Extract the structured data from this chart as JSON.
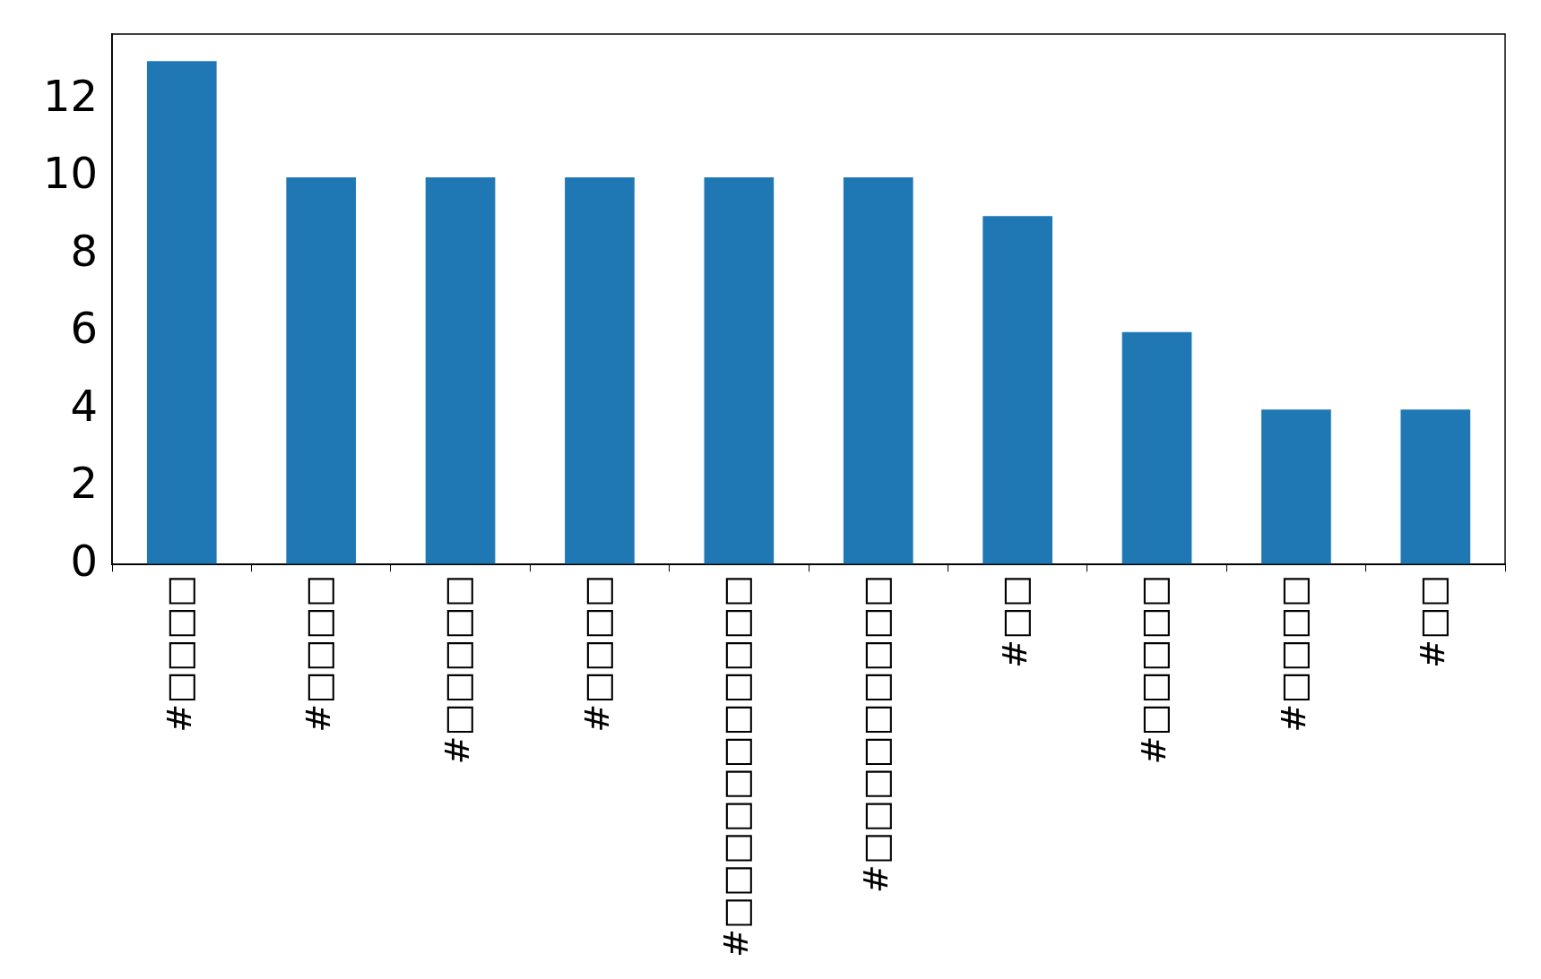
{
  "chart_data": {
    "type": "bar",
    "categories": [
      "#□□□□",
      "#□□□□",
      "#□□□□□",
      "#□□□□",
      "#□□□□□□□□□□□",
      "#□□□□□□□□□",
      "#□□",
      "#□□□□□",
      "#□□□□",
      "#□□"
    ],
    "values": [
      13,
      10,
      10,
      10,
      10,
      10,
      9,
      6,
      4,
      4
    ],
    "color": "#1f77b4",
    "ylim": [
      0,
      13.7
    ],
    "yticks": [
      0,
      2,
      4,
      6,
      8,
      10,
      12
    ],
    "grid": false,
    "legend": false
  }
}
